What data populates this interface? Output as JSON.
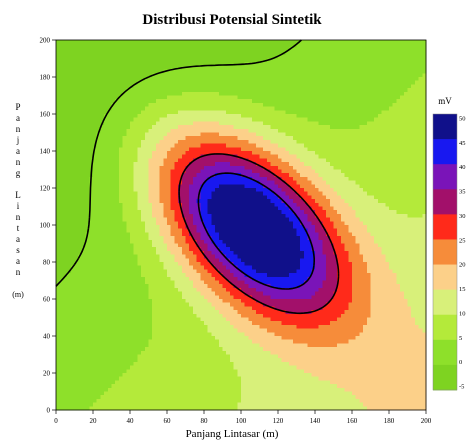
{
  "chart_data": {
    "type": "contour",
    "title": "Distribusi Potensial Sintetik",
    "xlabel": "Panjang Lintasar (m)",
    "ylabel_letters": [
      "P",
      "a",
      "n",
      "j",
      "a",
      "n",
      "g",
      "",
      "L",
      "i",
      "n",
      "t",
      "a",
      "s",
      "a",
      "n",
      "",
      "(m)"
    ],
    "xlim": [
      0,
      200
    ],
    "ylim": [
      0,
      200
    ],
    "x_ticks": [
      0,
      20,
      40,
      60,
      80,
      100,
      120,
      140,
      160,
      180,
      200
    ],
    "y_ticks": [
      0,
      20,
      40,
      60,
      80,
      100,
      120,
      140,
      160,
      180,
      200
    ],
    "unit": "mV",
    "colorbar_ticks": [
      "50",
      "45",
      "40",
      "35",
      "30",
      "25",
      "20",
      "15",
      "10",
      "5",
      "0",
      "-5"
    ],
    "levels": [
      -5,
      0,
      5,
      10,
      15,
      20,
      25,
      30,
      35,
      40,
      45,
      50
    ],
    "level_colors": [
      "#7ed321",
      "#8ee02a",
      "#b4ea3a",
      "#d8f07a",
      "#fcd089",
      "#f68c3a",
      "#ff2a1a",
      "#a2106a",
      "#7a14b8",
      "#1818f0",
      "#10108a"
    ],
    "highlight_level": 30,
    "sources": [
      {
        "x": 105,
        "y": 100,
        "amplitude": 52,
        "sigma_x": 38,
        "sigma_y": 38
      }
    ],
    "shape": {
      "axis_angle_deg": -45,
      "elongation": 1.75,
      "background": 4,
      "trend": 0.06
    }
  }
}
